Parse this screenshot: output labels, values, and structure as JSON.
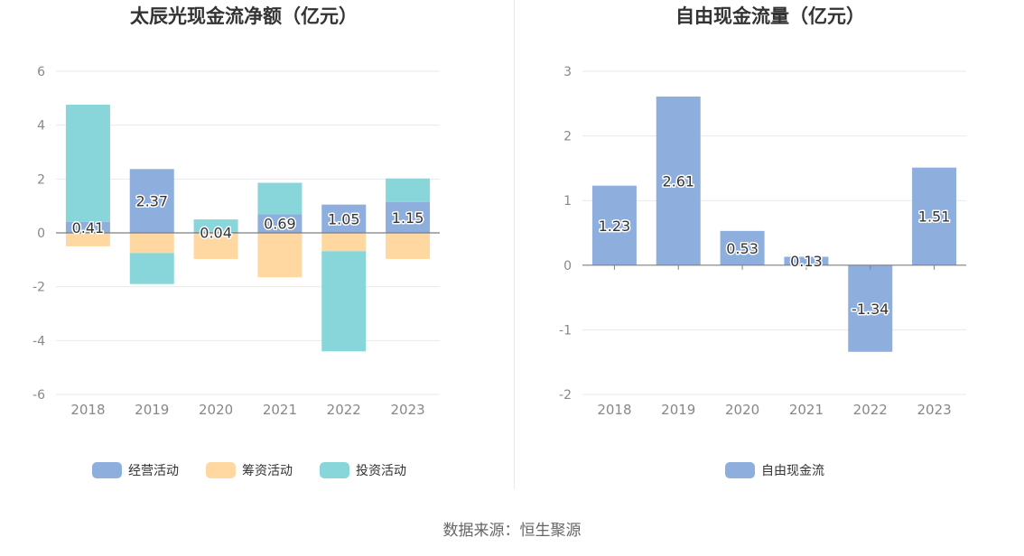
{
  "source_text": "数据来源：恒生聚源",
  "chart_data": [
    {
      "type": "bar",
      "stacked": true,
      "title": "太辰光现金流净额（亿元）",
      "categories": [
        "2018",
        "2019",
        "2020",
        "2021",
        "2022",
        "2023"
      ],
      "ylim": [
        -6,
        6
      ],
      "yticks": [
        6,
        4,
        2,
        0,
        -2,
        -4,
        -6
      ],
      "grid": true,
      "legend_position": "bottom",
      "series": [
        {
          "name": "经营活动",
          "color": "#8eaedd",
          "values": [
            0.41,
            2.37,
            0.04,
            0.69,
            1.05,
            1.15
          ],
          "labels": [
            "0.41",
            "2.37",
            "0.04",
            "0.69",
            "1.05",
            "1.15"
          ]
        },
        {
          "name": "筹资活动",
          "color": "#fed8a0",
          "values": [
            -0.5,
            -0.75,
            -0.97,
            -1.65,
            -0.68,
            -0.97
          ]
        },
        {
          "name": "投资活动",
          "color": "#88d6da",
          "values": [
            4.35,
            -1.15,
            0.46,
            1.17,
            -3.72,
            0.87
          ]
        }
      ]
    },
    {
      "type": "bar",
      "title": "自由现金流量（亿元）",
      "categories": [
        "2018",
        "2019",
        "2020",
        "2021",
        "2022",
        "2023"
      ],
      "ylim": [
        -2,
        3
      ],
      "yticks": [
        3,
        2,
        1,
        0,
        -1,
        -2
      ],
      "grid": true,
      "legend_position": "bottom",
      "series": [
        {
          "name": "自由现金流",
          "color": "#8eaedd",
          "values": [
            1.23,
            2.61,
            0.53,
            0.13,
            -1.34,
            1.51
          ],
          "labels": [
            "1.23",
            "2.61",
            "0.53",
            "0.13",
            "-1.34",
            "1.51"
          ]
        }
      ]
    }
  ]
}
